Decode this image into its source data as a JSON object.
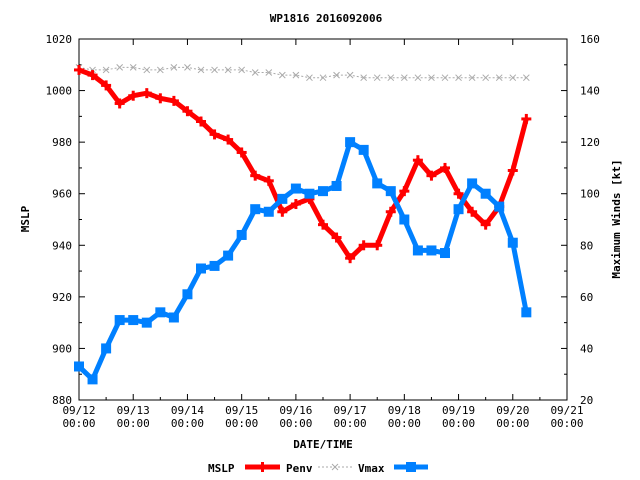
{
  "chart_data": {
    "type": "line",
    "title": "WP1816 2016092006",
    "xlabel": "DATE/TIME",
    "ylabel": "MSLP",
    "y2label": "Maximum Winds [kt]",
    "x_ticks": [
      "09/12\n00:00",
      "09/13\n00:00",
      "09/14\n00:00",
      "09/15\n00:00",
      "09/16\n00:00",
      "09/17\n00:00",
      "09/18\n00:00",
      "09/19\n00:00",
      "09/20\n00:00",
      "09/21\n00:00"
    ],
    "ylim": [
      880,
      1020
    ],
    "y_ticks": [
      880,
      900,
      920,
      940,
      960,
      980,
      1000,
      1020
    ],
    "y2lim": [
      20,
      160
    ],
    "y2_ticks": [
      20,
      40,
      60,
      80,
      100,
      120,
      140,
      160
    ],
    "xlim_days": [
      0,
      9
    ],
    "legend_label": "MSLP",
    "legend_position": "bottom",
    "series": [
      {
        "name": "Penv",
        "axis": "left",
        "color": "#ff0000",
        "style": "thick-plus",
        "x": [
          0,
          0.25,
          0.5,
          0.75,
          1.0,
          1.25,
          1.5,
          1.75,
          2.0,
          2.25,
          2.5,
          2.75,
          3.0,
          3.25,
          3.5,
          3.75,
          4.0,
          4.25,
          4.5,
          4.75,
          5.0,
          5.25,
          5.5,
          5.75,
          6.0,
          6.25,
          6.5,
          6.75,
          7.0,
          7.25,
          7.5,
          7.75,
          8.0,
          8.25
        ],
        "values": [
          1008,
          1006,
          1002,
          995,
          998,
          999,
          997,
          996,
          992,
          988,
          983,
          981,
          976,
          967,
          965,
          953,
          956,
          958,
          948,
          943,
          935,
          940,
          940,
          953,
          961,
          973,
          967,
          970,
          960,
          953,
          948,
          955,
          969,
          989
        ]
      },
      {
        "name": "",
        "axis": "left",
        "color": "#aaaaaa",
        "style": "dotted-x",
        "x": [
          0,
          0.25,
          0.5,
          0.75,
          1.0,
          1.25,
          1.5,
          1.75,
          2.0,
          2.25,
          2.5,
          2.75,
          3.0,
          3.25,
          3.5,
          3.75,
          4.0,
          4.25,
          4.5,
          4.75,
          5.0,
          5.25,
          5.5,
          5.75,
          6.0,
          6.25,
          6.5,
          6.75,
          7.0,
          7.25,
          7.5,
          7.75,
          8.0,
          8.25
        ],
        "values": [
          1009,
          1008,
          1008,
          1009,
          1009,
          1008,
          1008,
          1009,
          1009,
          1008,
          1008,
          1008,
          1008,
          1007,
          1007,
          1006,
          1006,
          1005,
          1005,
          1006,
          1006,
          1005,
          1005,
          1005,
          1005,
          1005,
          1005,
          1005,
          1005,
          1005,
          1005,
          1005,
          1005,
          1005
        ]
      },
      {
        "name": "Vmax",
        "axis": "right",
        "color": "#0080ff",
        "style": "thick-square",
        "x": [
          0,
          0.25,
          0.5,
          0.75,
          1.0,
          1.25,
          1.5,
          1.75,
          2.0,
          2.25,
          2.5,
          2.75,
          3.0,
          3.25,
          3.5,
          3.75,
          4.0,
          4.25,
          4.5,
          4.75,
          5.0,
          5.25,
          5.5,
          5.75,
          6.0,
          6.25,
          6.5,
          6.75,
          7.0,
          7.25,
          7.5,
          7.75,
          8.0,
          8.25
        ],
        "values": [
          33,
          28,
          40,
          51,
          51,
          50,
          54,
          52,
          61,
          71,
          72,
          76,
          84,
          94,
          93,
          98,
          102,
          100,
          101,
          103,
          120,
          117,
          104,
          101,
          90,
          78,
          78,
          77,
          94,
          104,
          100,
          95,
          81,
          54
        ]
      }
    ]
  }
}
